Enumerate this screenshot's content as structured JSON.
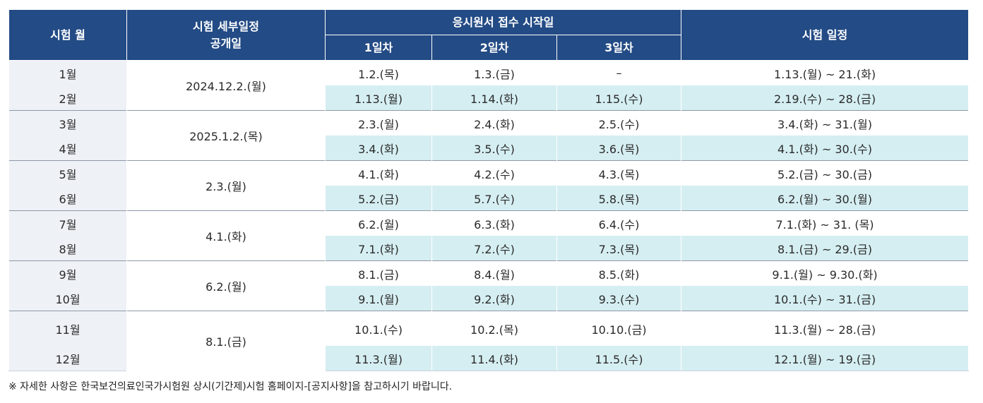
{
  "header": {
    "month": "시험 월",
    "detail_pub_line1": "시험 세부일정",
    "detail_pub_line2": "공개일",
    "app_start": "응시원서 접수 시작일",
    "day1": "1일차",
    "day2": "2일차",
    "day3": "3일차",
    "exam_schedule": "시험 일정"
  },
  "rows": [
    {
      "month": "1월",
      "pub": "2024.12.2.(월)",
      "d1": "1.2.(목)",
      "d2": "1.3.(금)",
      "d3": "–",
      "exam": "1.13.(월) ~ 21.(화)"
    },
    {
      "month": "2월",
      "d1": "1.13.(월)",
      "d2": "1.14.(화)",
      "d3": "1.15.(수)",
      "exam": "2.19.(수) ~ 28.(금)"
    },
    {
      "month": "3월",
      "pub": "2025.1.2.(목)",
      "d1": "2.3.(월)",
      "d2": "2.4.(화)",
      "d3": "2.5.(수)",
      "exam": "3.4.(화) ~ 31.(월)"
    },
    {
      "month": "4월",
      "d1": "3.4.(화)",
      "d2": "3.5.(수)",
      "d3": "3.6.(목)",
      "exam": "4.1.(화) ~ 30.(수)"
    },
    {
      "month": "5월",
      "pub": "2.3.(월)",
      "d1": "4.1.(화)",
      "d2": "4.2.(수)",
      "d3": "4.3.(목)",
      "exam": "5.2.(금) ~ 30.(금)"
    },
    {
      "month": "6월",
      "d1": "5.2.(금)",
      "d2": "5.7.(수)",
      "d3": "5.8.(목)",
      "exam": "6.2.(월) ~ 30.(월)"
    },
    {
      "month": "7월",
      "pub": "4.1.(화)",
      "d1": "6.2.(월)",
      "d2": "6.3.(화)",
      "d3": "6.4.(수)",
      "exam": "7.1.(화) ~ 31. (목)"
    },
    {
      "month": "8월",
      "d1": "7.1.(화)",
      "d2": "7.2.(수)",
      "d3": "7.3.(목)",
      "exam": "8.1.(금) ~ 29.(금)"
    },
    {
      "month": "9월",
      "pub": "6.2.(월)",
      "d1": "8.1.(금)",
      "d2": "8.4.(월)",
      "d3": "8.5.(화)",
      "exam": "9.1.(월) ~ 9.30.(화)"
    },
    {
      "month": "10월",
      "d1": "9.1.(월)",
      "d2": "9.2.(화)",
      "d3": "9.3.(수)",
      "exam": "10.1.(수) ~ 31.(금)"
    },
    {
      "month": "11월",
      "pub": "8.1.(금)",
      "d1": "10.1.(수)",
      "d2": "10.2.(목)",
      "d3": "10.10.(금)",
      "exam": "11.3.(월) ~ 28.(금)"
    },
    {
      "month": "12월",
      "d1": "11.3.(월)",
      "d2": "11.4.(화)",
      "d3": "11.5.(수)",
      "exam": "12.1.(월) ~ 19.(금)"
    }
  ],
  "note": "※ 자세한 사항은 한국보건의료인국가시험원 상시(기간제)시험 홈페이지-[공지사항]을 참고하시기 바랍니다.",
  "colors": {
    "header_bg": "#234b85",
    "teal_row": "#d5eef2",
    "month_bg": "#eef1f6"
  }
}
